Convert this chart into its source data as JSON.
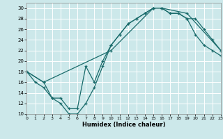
{
  "xlabel": "Humidex (Indice chaleur)",
  "bg_color": "#cce8ea",
  "grid_color": "#ffffff",
  "line_color": "#1a6b6b",
  "xlim": [
    0,
    23
  ],
  "ylim": [
    10,
    31
  ],
  "xticks": [
    0,
    1,
    2,
    3,
    4,
    5,
    6,
    7,
    8,
    9,
    10,
    11,
    12,
    13,
    14,
    15,
    16,
    17,
    18,
    19,
    20,
    21,
    22,
    23
  ],
  "yticks": [
    10,
    12,
    14,
    16,
    18,
    20,
    22,
    24,
    26,
    28,
    30
  ],
  "line1_x": [
    0,
    1,
    2,
    3,
    4,
    5,
    6,
    7,
    8,
    9,
    10,
    11,
    12,
    13,
    14,
    15,
    16,
    17,
    18,
    19,
    20,
    21,
    22,
    23
  ],
  "line1_y": [
    18,
    16,
    15,
    13,
    12,
    10,
    10,
    12,
    15,
    19,
    23,
    25,
    27,
    28,
    29,
    30,
    30,
    29,
    29,
    28,
    25,
    23,
    22,
    21
  ],
  "line2_x": [
    0,
    2,
    3,
    4,
    5,
    6,
    7,
    8,
    9,
    10,
    11,
    12,
    13,
    14,
    15,
    16,
    17,
    18,
    19,
    20,
    21,
    22,
    23
  ],
  "line2_y": [
    18,
    16,
    13,
    13,
    11,
    11,
    19,
    16,
    20,
    23,
    25,
    27,
    28,
    29,
    30,
    30,
    29,
    29,
    28,
    28,
    26,
    24,
    22
  ],
  "line3_x": [
    0,
    2,
    10,
    15,
    16,
    19,
    23
  ],
  "line3_y": [
    18,
    16,
    22,
    30,
    30,
    29,
    22
  ]
}
